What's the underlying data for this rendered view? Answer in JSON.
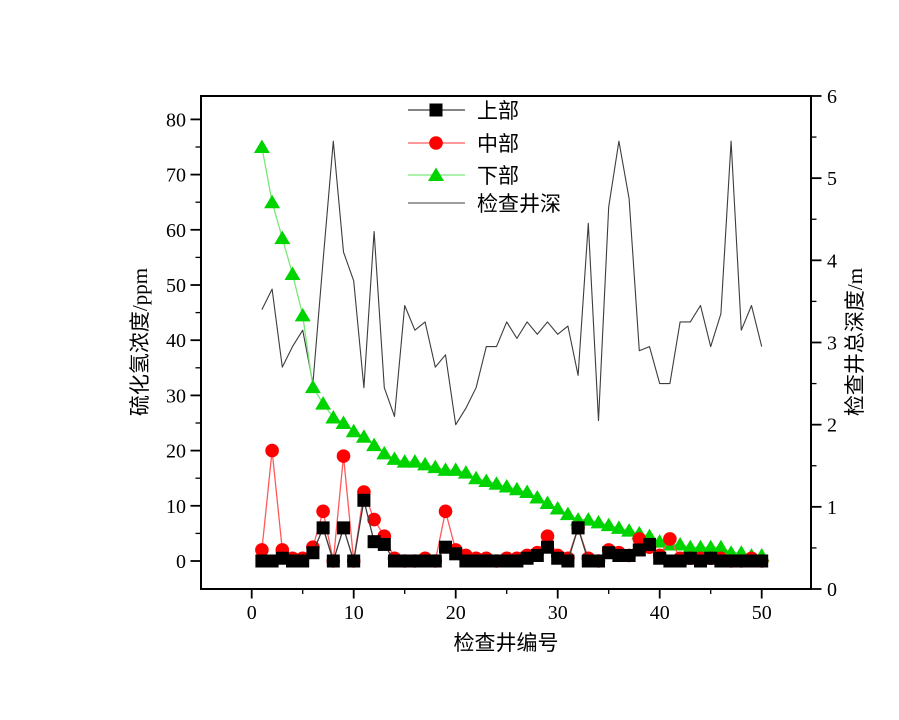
{
  "chart_data": {
    "type": "line",
    "title": "",
    "xlabel": "检查井编号",
    "ylabel_left": "硫化氢浓度/ppm",
    "ylabel_right": "检查井总深度/m",
    "grid": false,
    "legend_position": "top-center-inside",
    "xlim": [
      -5,
      55
    ],
    "ylim_left": [
      -5,
      85
    ],
    "ylim_right": [
      0,
      6
    ],
    "x_ticks": [
      0,
      10,
      20,
      30,
      40,
      50
    ],
    "x_minor_ticks": [
      5,
      15,
      25,
      35,
      45
    ],
    "y_left_ticks": [
      0,
      10,
      20,
      30,
      40,
      50,
      60,
      70,
      80
    ],
    "y_left_minor_ticks": [
      5,
      15,
      25,
      35,
      45,
      55,
      65,
      75
    ],
    "y_right_ticks": [
      0,
      1,
      2,
      3,
      4,
      5,
      6
    ],
    "y_right_minor_ticks": [
      0.5,
      1.5,
      2.5,
      3.5,
      4.5,
      5.5
    ],
    "x": [
      1,
      2,
      3,
      4,
      5,
      6,
      7,
      8,
      9,
      10,
      11,
      12,
      13,
      14,
      15,
      16,
      17,
      18,
      19,
      20,
      21,
      22,
      23,
      24,
      25,
      26,
      27,
      28,
      29,
      30,
      31,
      32,
      33,
      34,
      35,
      36,
      37,
      38,
      39,
      40,
      41,
      42,
      43,
      44,
      45,
      46,
      47,
      48,
      49,
      50
    ],
    "series": [
      {
        "name": "上部",
        "axis": "left",
        "marker": "square",
        "marker_color": "#000000",
        "line_color": "#3c3c3c",
        "values": [
          0,
          0,
          0.5,
          0,
          0,
          1.5,
          6,
          0,
          6,
          0,
          11,
          3.5,
          3,
          0,
          0,
          0,
          0,
          0,
          2.5,
          1.3,
          0,
          0,
          0,
          0,
          0,
          0,
          0.5,
          1,
          2.5,
          0.5,
          0,
          6,
          0,
          0,
          1.5,
          1,
          1,
          2,
          3,
          0.5,
          0,
          0,
          0.5,
          0,
          0.5,
          0,
          0,
          0,
          0,
          0
        ]
      },
      {
        "name": "中部",
        "axis": "left",
        "marker": "circle",
        "marker_color": "#ff0000",
        "line_color": "#ff5a5a",
        "values": [
          2,
          20,
          2,
          0.5,
          0.5,
          2.5,
          9,
          0,
          19,
          0,
          12.5,
          7.5,
          4.5,
          0.5,
          0,
          0,
          0.5,
          0,
          9,
          2,
          1,
          0.5,
          0.5,
          0,
          0.5,
          0.5,
          1,
          1.5,
          4.5,
          1,
          0.5,
          6,
          0.5,
          0,
          2,
          1.5,
          1,
          4,
          2.5,
          1,
          4,
          0.5,
          0.5,
          0.5,
          0.5,
          0.5,
          0,
          0,
          0.5,
          0
        ]
      },
      {
        "name": "下部",
        "axis": "left",
        "marker": "triangle",
        "marker_color": "#00d400",
        "line_color": "#79e879",
        "values": [
          75,
          65,
          58.5,
          52,
          44.5,
          31.5,
          28.5,
          26,
          25,
          23.5,
          22.5,
          21,
          19.5,
          18.5,
          18,
          18,
          17.5,
          17,
          16.5,
          16.5,
          16,
          15,
          14.5,
          14,
          13.5,
          13,
          12.5,
          11.5,
          10.5,
          9.5,
          8.5,
          7.5,
          7.5,
          7,
          6.5,
          6,
          5.5,
          5,
          4.5,
          3.5,
          3,
          3,
          2.5,
          2.5,
          2.5,
          2.5,
          1.5,
          1.5,
          1,
          1
        ]
      },
      {
        "name": "检查井深",
        "axis": "right",
        "marker": "none",
        "marker_color": "#3c3c3c",
        "line_color": "#3c3c3c",
        "values": [
          3.4,
          3.65,
          2.7,
          2.95,
          3.15,
          2.5,
          4,
          5.45,
          4.1,
          3.75,
          2.45,
          4.35,
          2.45,
          2.1,
          3.45,
          3.15,
          3.25,
          2.7,
          2.85,
          2,
          2.2,
          2.45,
          2.95,
          2.95,
          3.25,
          3.05,
          3.25,
          3.1,
          3.25,
          3.1,
          3.2,
          2.6,
          4.45,
          2.05,
          4.65,
          5.45,
          4.75,
          2.9,
          2.95,
          2.5,
          2.5,
          3.25,
          3.25,
          3.45,
          2.95,
          3.35,
          5.45,
          3.15,
          3.45,
          2.95
        ]
      }
    ]
  }
}
